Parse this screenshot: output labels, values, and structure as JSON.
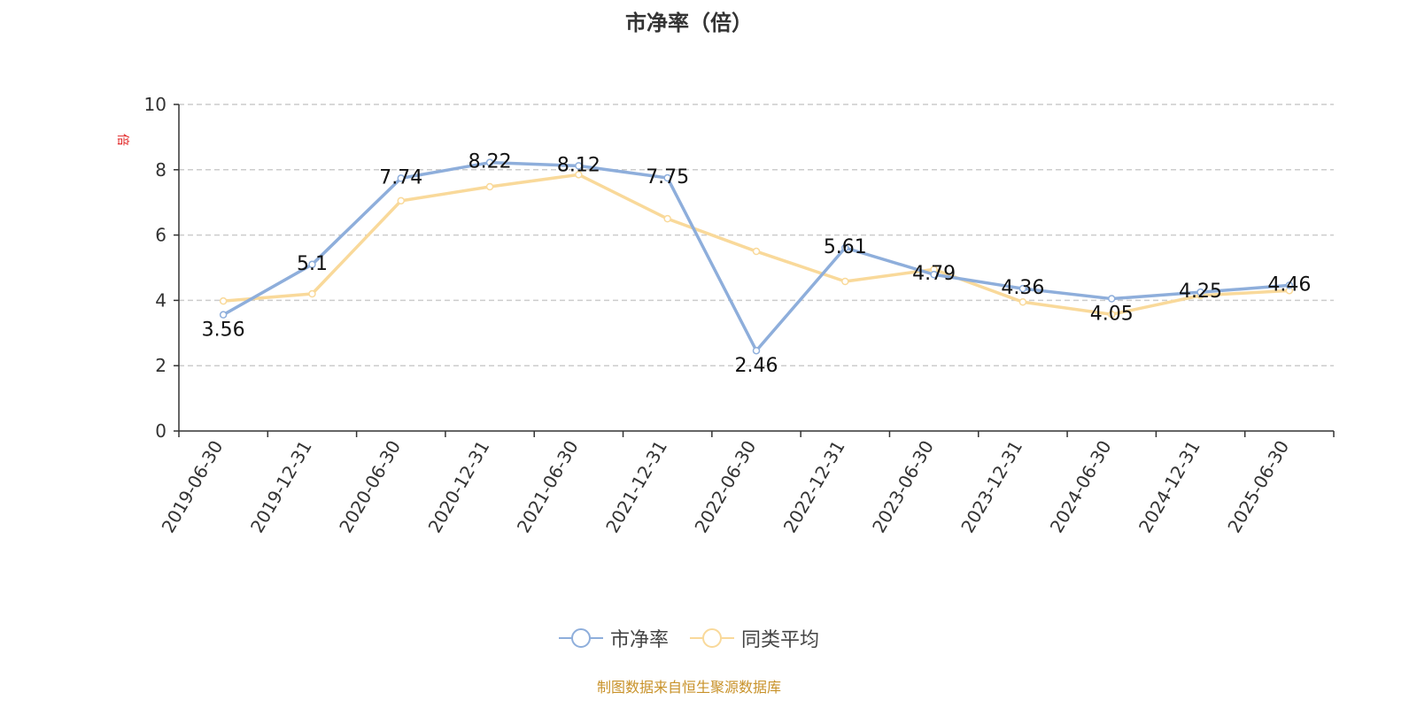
{
  "title": "市净率（倍）",
  "y_unit": "倍",
  "footer": "制图数据来自恒生聚源数据库",
  "legend": [
    {
      "label": "市净率",
      "color": "#8eaedb"
    },
    {
      "label": "同类平均",
      "color": "#f9d99a"
    }
  ],
  "chart_data": {
    "type": "line",
    "title": "市净率（倍）",
    "xlabel": "",
    "ylabel": "倍",
    "ylim": [
      0,
      10
    ],
    "yticks": [
      0,
      2,
      4,
      6,
      8,
      10
    ],
    "grid": true,
    "legend_position": "bottom",
    "categories": [
      "2019-06-30",
      "2019-12-31",
      "2020-06-30",
      "2020-12-31",
      "2021-06-30",
      "2021-12-31",
      "2022-06-30",
      "2022-12-31",
      "2023-06-30",
      "2023-12-31",
      "2024-06-30",
      "2024-12-31",
      "2025-06-30"
    ],
    "series": [
      {
        "name": "市净率",
        "color": "#8eaedb",
        "values": [
          3.56,
          5.1,
          7.74,
          8.22,
          8.12,
          7.75,
          2.46,
          5.61,
          4.79,
          4.36,
          4.05,
          4.25,
          4.46
        ],
        "labels": [
          "3.56",
          "5.1",
          "7.74",
          "8.22",
          "8.12",
          "7.75",
          "2.46",
          "5.61",
          "4.79",
          "4.36",
          "4.05",
          "4.25",
          "4.46"
        ]
      },
      {
        "name": "同类平均",
        "color": "#f9d99a",
        "values": [
          3.98,
          4.2,
          7.05,
          7.48,
          7.85,
          6.5,
          5.5,
          4.58,
          4.95,
          3.95,
          3.57,
          4.15,
          4.3
        ]
      }
    ]
  }
}
